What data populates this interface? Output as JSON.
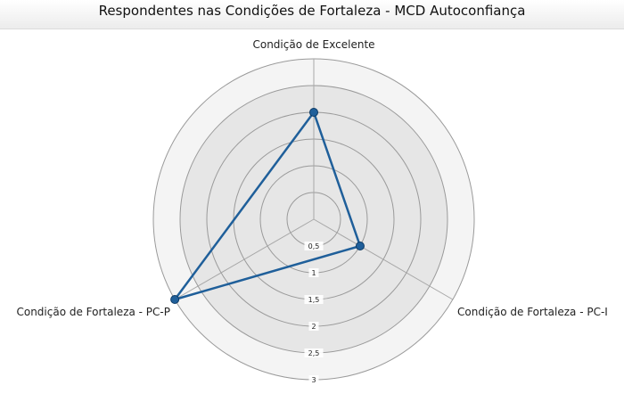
{
  "chart_data": {
    "type": "radar",
    "title": "Respondentes nas Condições de Fortaleza - MCD Autoconfiança",
    "axes": [
      "Condição de Excelente",
      "Condição de Fortaleza - PC-I",
      "Condição de Fortaleza - PC-P"
    ],
    "ticks": [
      "0,5",
      "1",
      "1,5",
      "2",
      "2,5",
      "3"
    ],
    "range": [
      0,
      3
    ],
    "grid": true,
    "series": [
      {
        "values": [
          2.0,
          1.0,
          3.0
        ],
        "color": "#1f5f9a"
      }
    ]
  }
}
